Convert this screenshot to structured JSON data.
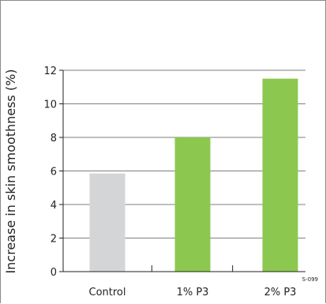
{
  "chart_data": {
    "type": "bar",
    "title": "",
    "xlabel": "",
    "ylabel": "Increase in skin smoothness (%)",
    "categories": [
      "Control",
      "1% P3",
      "2% P3"
    ],
    "values": [
      5.85,
      8.0,
      11.5
    ],
    "ylim": [
      0,
      12
    ],
    "yticks": [
      0,
      2,
      4,
      6,
      8,
      10,
      12
    ],
    "grid": true,
    "bar_colors": [
      "#d4d5d7",
      "#8cc850",
      "#8cc850"
    ],
    "annotation": "S-099"
  }
}
